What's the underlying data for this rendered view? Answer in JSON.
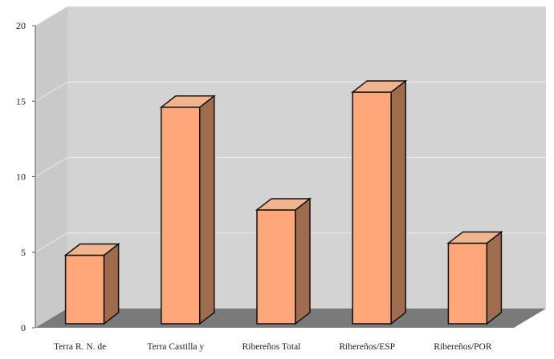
{
  "chart_data": {
    "type": "bar",
    "title": "",
    "xlabel": "",
    "ylabel": "",
    "categories": [
      "Terra R. N. de",
      "Terra Castilla y",
      "Ribereños Total",
      "Ribereños/ESP",
      "Ribereños/POR"
    ],
    "values": [
      4.8,
      14.6,
      7.8,
      15.6,
      5.6
    ],
    "ylim": [
      0,
      20
    ],
    "yticks": [
      0,
      5,
      10,
      15,
      20
    ],
    "grid": true,
    "legend": "none",
    "style": "3d-column"
  },
  "colors": {
    "bar_front": "#ffa67a",
    "bar_side": "#a06c4e",
    "bar_top": "#f0b48e",
    "wall": "#d3d3d3",
    "side_wall": "#c9c9c9",
    "floor": "#7a7a7a",
    "gridline": "#ececec"
  }
}
